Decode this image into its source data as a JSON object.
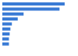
{
  "chart_data": {
    "type": "bar",
    "orientation": "horizontal",
    "categories": [
      null,
      null,
      null,
      null,
      null,
      null,
      null,
      null,
      null
    ],
    "values": [
      85,
      78,
      29,
      21,
      13,
      11,
      10,
      9,
      9
    ],
    "color": "#3a7bd5",
    "xlim": [
      0,
      100
    ],
    "tick_labels": false,
    "grid": false
  }
}
